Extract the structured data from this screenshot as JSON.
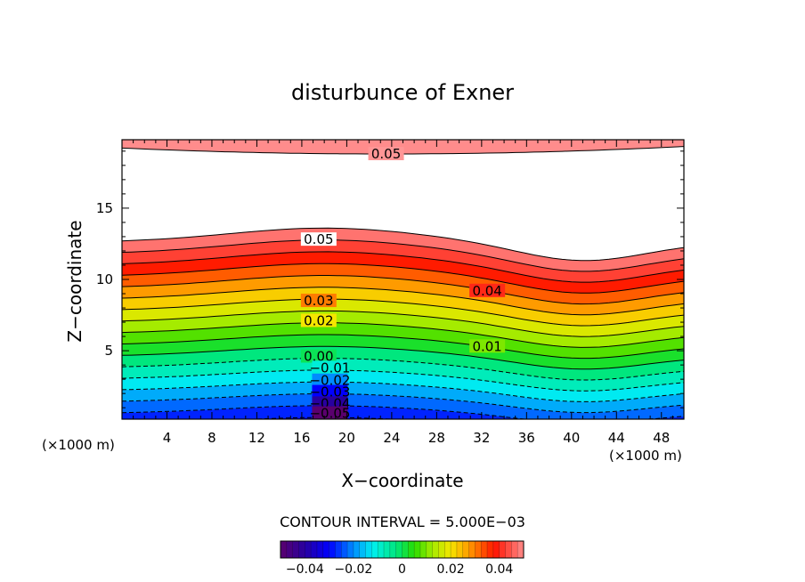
{
  "chart_data": {
    "type": "contour",
    "title": "disturbunce of Exner",
    "xlabel": "X−coordinate",
    "ylabel": "Z−coordinate",
    "x_unit_left": "(×1000 m)",
    "x_unit_right": "(×1000 m)",
    "xlim": [
      0,
      50
    ],
    "ylim": [
      0.2,
      19.8
    ],
    "x_ticks": [
      4,
      8,
      12,
      16,
      20,
      24,
      28,
      32,
      36,
      40,
      44,
      48
    ],
    "y_ticks": [
      5,
      10,
      15
    ],
    "contour_interval_text": "CONTOUR INTERVAL = 5.000E−03",
    "colorbar": {
      "range": [
        -0.05,
        0.05
      ],
      "tick_labels": [
        "−0.04",
        "−0.02",
        "0",
        "0.02",
        "0.04"
      ],
      "tick_values": [
        -0.04,
        -0.02,
        0,
        0.02,
        0.04
      ]
    },
    "contour_labels": [
      {
        "text": "0.05",
        "x": 23.5,
        "z": 18.8
      },
      {
        "text": "0.05",
        "x": 17.5,
        "z": 12.8
      },
      {
        "text": "0.04",
        "x": 32.5,
        "z": 9.2
      },
      {
        "text": "0.03",
        "x": 17.5,
        "z": 8.5
      },
      {
        "text": "0.02",
        "x": 17.5,
        "z": 7.1
      },
      {
        "text": "0.01",
        "x": 32.5,
        "z": 5.3
      },
      {
        "text": "0.00",
        "x": 17.5,
        "z": 4.6
      },
      {
        "text": "−0.01",
        "x": 18.5,
        "z": 3.8
      },
      {
        "text": "−0.02",
        "x": 18.5,
        "z": 2.9
      },
      {
        "text": "−0.03",
        "x": 18.5,
        "z": 2.1
      },
      {
        "text": "−0.04",
        "x": 18.5,
        "z": 1.3
      },
      {
        "text": "−0.05",
        "x": 18.5,
        "z": 0.6
      }
    ],
    "grid": false,
    "legend": "colorbar-bottom"
  }
}
